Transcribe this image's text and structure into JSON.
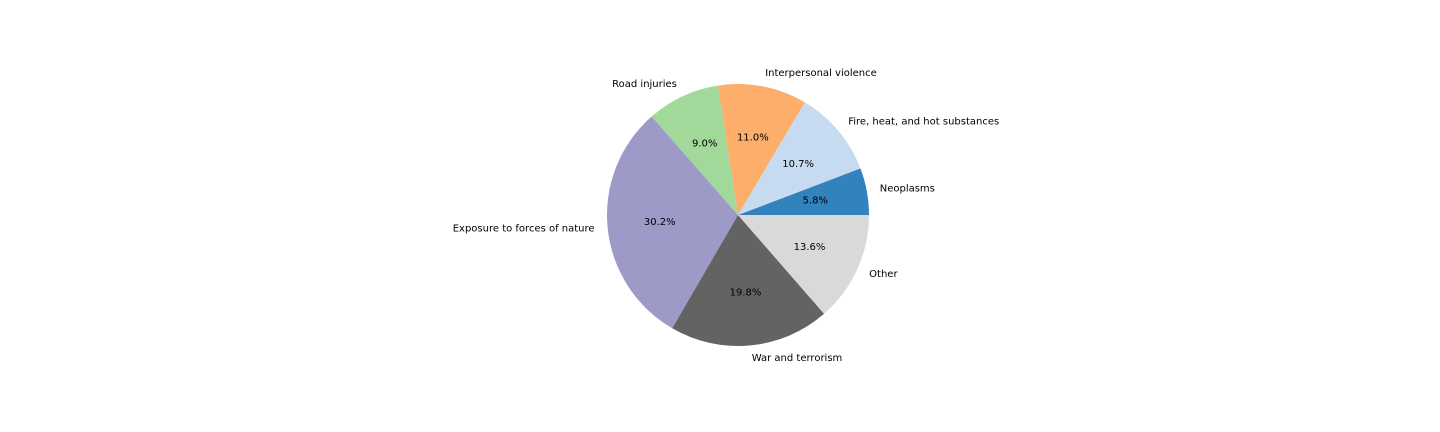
{
  "chart_data": {
    "type": "pie",
    "title": "",
    "start_angle_deg": 0,
    "direction": "counterclockwise",
    "slices": [
      {
        "label": "Neoplasms",
        "value": 5.8,
        "pct_label": "5.8%",
        "color": "#3182bd"
      },
      {
        "label": "Fire, heat, and hot substances",
        "value": 10.7,
        "pct_label": "10.7%",
        "color": "#c6dbef"
      },
      {
        "label": "Interpersonal violence",
        "value": 11.0,
        "pct_label": "11.0%",
        "color": "#fdae6b"
      },
      {
        "label": "Road injuries",
        "value": 9.0,
        "pct_label": "9.0%",
        "color": "#a1d99b"
      },
      {
        "label": "Exposure to forces of nature",
        "value": 30.2,
        "pct_label": "30.2%",
        "color": "#9e9ac8"
      },
      {
        "label": "War and terrorism",
        "value": 19.8,
        "pct_label": "19.8%",
        "color": "#636363"
      },
      {
        "label": "Other",
        "value": 13.6,
        "pct_label": "13.6%",
        "color": "#d9d9d9"
      }
    ]
  }
}
